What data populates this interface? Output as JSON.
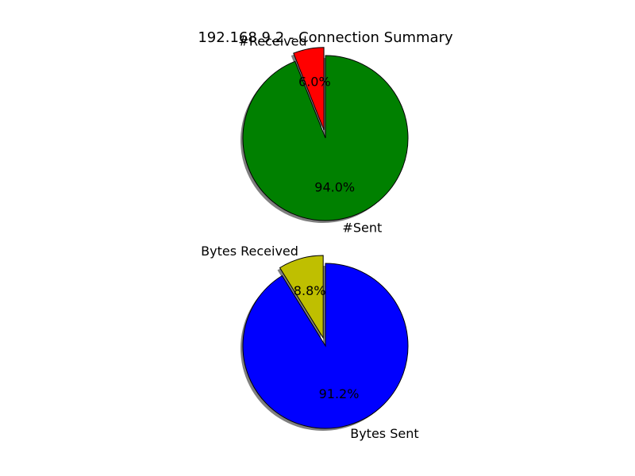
{
  "figure": {
    "title": "192.168.9.2 - Connection Summary"
  },
  "chart_data": [
    {
      "type": "pie",
      "labels": [
        "#Received",
        "#Sent"
      ],
      "values": [
        6.0,
        94.0
      ],
      "value_labels": [
        "6.0%",
        "94.0%"
      ],
      "colors": [
        "#ff0000",
        "#008000"
      ],
      "explode": [
        0.1,
        0
      ],
      "shadow": true
    },
    {
      "type": "pie",
      "labels": [
        "Bytes Received",
        "Bytes Sent"
      ],
      "values": [
        8.8,
        91.2
      ],
      "value_labels": [
        "8.8%",
        "91.2%"
      ],
      "colors": [
        "#bfbf00",
        "#0000ff"
      ],
      "explode": [
        0.1,
        0
      ],
      "shadow": true
    }
  ]
}
